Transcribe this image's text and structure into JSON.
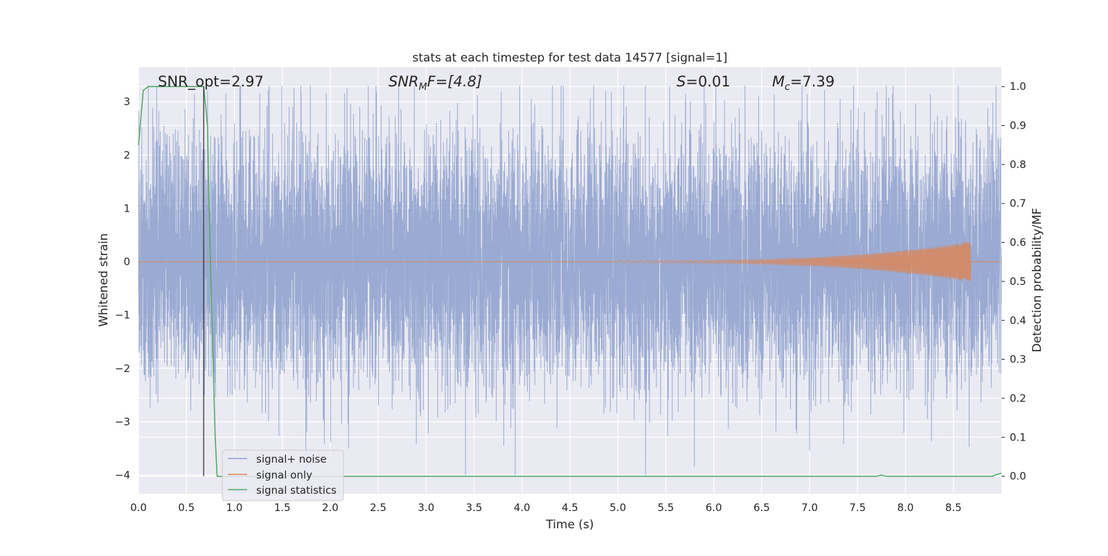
{
  "chart_data": {
    "type": "line",
    "title": "stats at each timestep for test data 14577 [signal=1]",
    "xlabel": "Time (s)",
    "ylabel": "Whitened strain",
    "ylabel_right": "Detection probability/MF",
    "xlim": [
      0.0,
      9.0
    ],
    "ylim": [
      -4.35,
      3.65
    ],
    "ylim_right": [
      -0.045,
      1.05
    ],
    "x_ticks": [
      "0.0",
      "0.5",
      "1.0",
      "1.5",
      "2.0",
      "2.5",
      "3.0",
      "3.5",
      "4.0",
      "4.5",
      "5.0",
      "5.5",
      "6.0",
      "6.5",
      "7.0",
      "7.5",
      "8.0",
      "8.5"
    ],
    "y_ticks": [
      "3",
      "2",
      "1",
      "0",
      "−1",
      "−2",
      "−3",
      "−4"
    ],
    "y_ticks_right": [
      "1.0",
      "0.9",
      "0.8",
      "0.7",
      "0.6",
      "0.5",
      "0.4",
      "0.3",
      "0.2",
      "0.1",
      "0.0"
    ],
    "grid": true,
    "legend_position": "lower-left",
    "annotations": {
      "snr_opt": "SNR_opt=2.97",
      "snr_mf_label": "SNR",
      "snr_mf_sub": "M",
      "snr_mf_rest": "F=[4.8]",
      "s_label": "S",
      "s_rest": "=0.01",
      "mc_label": "M",
      "mc_sub": "c",
      "mc_rest": "=7.39"
    },
    "vline_x": 0.68,
    "series": [
      {
        "name": "signal+ noise",
        "color": "#8c9fcc",
        "description_stats": {
          "samples": 9216,
          "typical_amplitude": 1.6,
          "extremes": [
            -4.0,
            3.3
          ]
        }
      },
      {
        "name": "signal only",
        "color": "#dd8452",
        "chirp": {
          "start_x": 5.0,
          "end_x": 8.68,
          "peak_amplitude": 0.38
        }
      },
      {
        "name": "signal statistics",
        "color": "#55a868",
        "axis": "right",
        "x": [
          0.0,
          0.05,
          0.1,
          0.2,
          0.4,
          0.6,
          0.68,
          0.72,
          0.75,
          0.8,
          0.82,
          1.0,
          2.0,
          4.0,
          6.0,
          7.5,
          7.7,
          7.75,
          7.8,
          8.0,
          8.5,
          8.9,
          9.0
        ],
        "y": [
          0.85,
          0.99,
          1.0,
          1.0,
          1.0,
          1.0,
          1.0,
          0.9,
          0.55,
          0.1,
          0.0,
          0.0,
          0.0,
          0.0,
          0.0,
          0.0,
          0.0,
          0.003,
          0.0,
          0.0,
          0.0,
          0.0,
          0.008
        ]
      }
    ]
  }
}
